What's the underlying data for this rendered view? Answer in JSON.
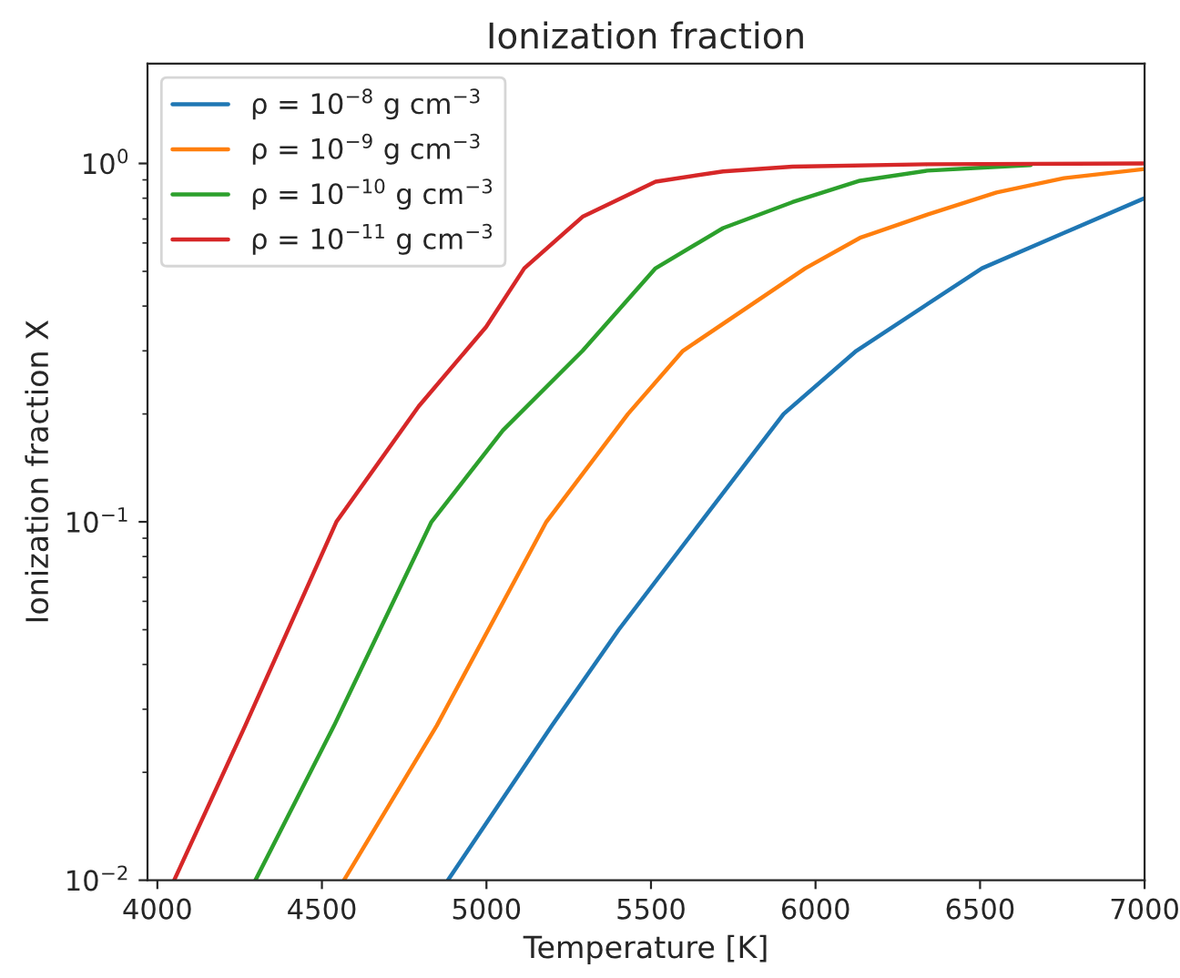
{
  "chart_data": {
    "type": "line",
    "title": "Ionization fraction",
    "xlabel": "Temperature [K]",
    "ylabel": "Ionization fraction X",
    "log": "y",
    "xlim": [
      3970,
      7000
    ],
    "ylim": [
      0.01,
      1.9
    ],
    "xticks": [
      4000,
      4500,
      5000,
      5500,
      6000,
      6500,
      7000
    ],
    "yticks": [
      {
        "value": 0.01,
        "label": "10$^{−2}$"
      },
      {
        "value": 0.1,
        "label": "10$^{−1}$"
      },
      {
        "value": 1,
        "label": "10$^{0}$"
      }
    ],
    "legend": "top left",
    "grid": false,
    "marker": "none",
    "line_style": "solid",
    "series": [
      {
        "name": "ρ = 10$^{−8}$ g cm$^{−3}$",
        "color": "#1f77b4",
        "x": [
          4883,
          5199,
          5402,
          5652,
          5903,
          6124,
          6506,
          6755,
          7000
        ],
        "values": [
          0.01,
          0.027,
          0.05,
          0.1,
          0.2,
          0.3,
          0.51,
          0.64,
          0.8
        ]
      },
      {
        "name": "ρ = 10$^{−9}$ g cm$^{−3}$",
        "color": "#ff7f0e",
        "x": [
          4567,
          4849,
          5182,
          5430,
          5597,
          5969,
          6135,
          6340,
          6550,
          6755,
          7000
        ],
        "values": [
          0.01,
          0.027,
          0.1,
          0.2,
          0.3,
          0.51,
          0.62,
          0.72,
          0.83,
          0.91,
          0.965
        ]
      },
      {
        "name": "ρ = 10$^{−10}$ g cm$^{−3}$",
        "color": "#2ca02c",
        "x": [
          4298,
          4537,
          4833,
          5050,
          5292,
          5514,
          5719,
          5930,
          6135,
          6340,
          6654
        ],
        "values": [
          0.01,
          0.027,
          0.1,
          0.18,
          0.3,
          0.51,
          0.66,
          0.78,
          0.895,
          0.955,
          0.99
        ]
      },
      {
        "name": "ρ = 10$^{−11}$ g cm$^{−3}$",
        "color": "#d62728",
        "x": [
          4051,
          4267,
          4544,
          4794,
          4999,
          5115,
          5292,
          5514,
          5719,
          5930,
          6340,
          7000
        ],
        "values": [
          0.01,
          0.027,
          0.1,
          0.21,
          0.35,
          0.51,
          0.71,
          0.89,
          0.95,
          0.98,
          0.995,
          1.0
        ]
      }
    ]
  }
}
